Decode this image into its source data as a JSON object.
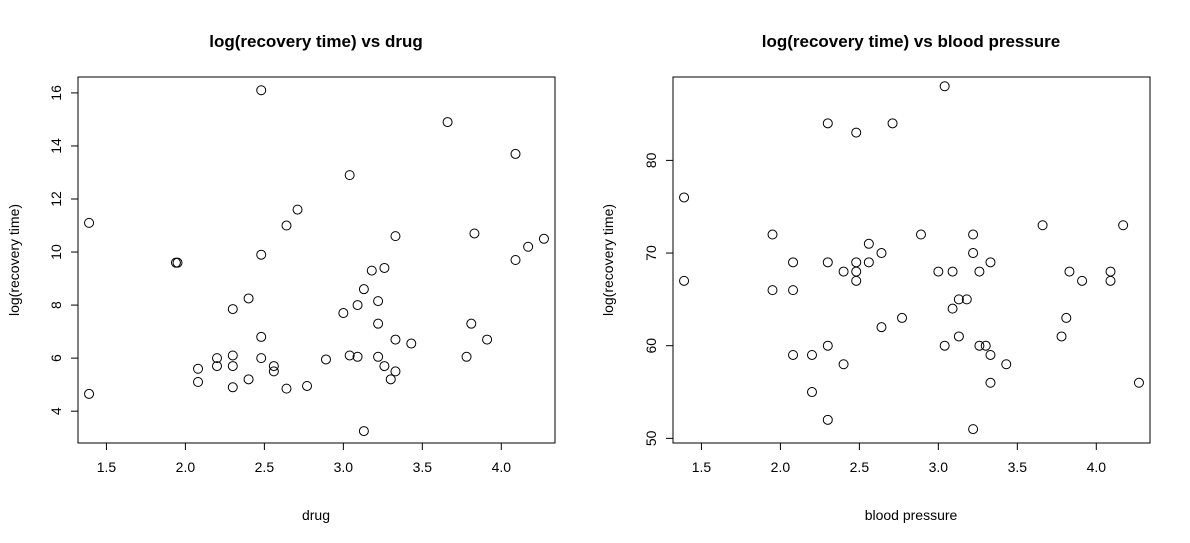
{
  "chart_data": [
    {
      "type": "scatter",
      "title": "log(recovery time) vs drug",
      "xlabel": "drug",
      "ylabel": "log(recovery time)",
      "xlim": [
        1.32,
        4.34
      ],
      "ylim": [
        2.8,
        16.6
      ],
      "xticks": [
        1.5,
        2.0,
        2.5,
        3.0,
        3.5,
        4.0
      ],
      "yticks": [
        4,
        6,
        8,
        10,
        12,
        14,
        16
      ],
      "xtick_labels": [
        "1.5",
        "2.0",
        "2.5",
        "3.0",
        "3.5",
        "4.0"
      ],
      "ytick_labels": [
        "4",
        "6",
        "8",
        "10",
        "12",
        "14",
        "16"
      ],
      "grid": false,
      "points": [
        {
          "x": 1.39,
          "y": 11.1
        },
        {
          "x": 1.39,
          "y": 4.65
        },
        {
          "x": 1.95,
          "y": 9.6
        },
        {
          "x": 1.94,
          "y": 9.6
        },
        {
          "x": 2.08,
          "y": 5.6
        },
        {
          "x": 2.08,
          "y": 5.1
        },
        {
          "x": 2.2,
          "y": 6.0
        },
        {
          "x": 2.2,
          "y": 5.7
        },
        {
          "x": 2.3,
          "y": 7.85
        },
        {
          "x": 2.3,
          "y": 6.1
        },
        {
          "x": 2.3,
          "y": 5.7
        },
        {
          "x": 2.3,
          "y": 4.9
        },
        {
          "x": 2.4,
          "y": 8.25
        },
        {
          "x": 2.4,
          "y": 5.2
        },
        {
          "x": 2.48,
          "y": 16.1
        },
        {
          "x": 2.48,
          "y": 9.9
        },
        {
          "x": 2.48,
          "y": 6.8
        },
        {
          "x": 2.48,
          "y": 6.0
        },
        {
          "x": 2.56,
          "y": 5.7
        },
        {
          "x": 2.56,
          "y": 5.5
        },
        {
          "x": 2.64,
          "y": 11.0
        },
        {
          "x": 2.64,
          "y": 4.85
        },
        {
          "x": 2.71,
          "y": 11.6
        },
        {
          "x": 2.77,
          "y": 4.95
        },
        {
          "x": 2.89,
          "y": 5.95
        },
        {
          "x": 3.0,
          "y": 7.7
        },
        {
          "x": 3.04,
          "y": 12.9
        },
        {
          "x": 3.04,
          "y": 6.1
        },
        {
          "x": 3.09,
          "y": 8.0
        },
        {
          "x": 3.09,
          "y": 6.05
        },
        {
          "x": 3.13,
          "y": 8.6
        },
        {
          "x": 3.13,
          "y": 3.25
        },
        {
          "x": 3.18,
          "y": 9.3
        },
        {
          "x": 3.22,
          "y": 8.15
        },
        {
          "x": 3.22,
          "y": 7.3
        },
        {
          "x": 3.22,
          "y": 6.05
        },
        {
          "x": 3.26,
          "y": 9.4
        },
        {
          "x": 3.26,
          "y": 5.7
        },
        {
          "x": 3.3,
          "y": 5.2
        },
        {
          "x": 3.33,
          "y": 10.6
        },
        {
          "x": 3.33,
          "y": 6.7
        },
        {
          "x": 3.33,
          "y": 5.5
        },
        {
          "x": 3.43,
          "y": 6.55
        },
        {
          "x": 3.66,
          "y": 14.9
        },
        {
          "x": 3.78,
          "y": 6.05
        },
        {
          "x": 3.81,
          "y": 7.3
        },
        {
          "x": 3.83,
          "y": 10.7
        },
        {
          "x": 3.91,
          "y": 6.7
        },
        {
          "x": 4.09,
          "y": 13.7
        },
        {
          "x": 4.09,
          "y": 9.7
        },
        {
          "x": 4.17,
          "y": 10.2
        },
        {
          "x": 4.27,
          "y": 10.5
        }
      ]
    },
    {
      "type": "scatter",
      "title": "log(recovery time) vs blood pressure",
      "xlabel": "blood pressure",
      "ylabel": "log(recovery time)",
      "xlim": [
        1.32,
        4.34
      ],
      "ylim": [
        49.5,
        89.0
      ],
      "xticks": [
        1.5,
        2.0,
        2.5,
        3.0,
        3.5,
        4.0
      ],
      "yticks": [
        50,
        60,
        70,
        80
      ],
      "xtick_labels": [
        "1.5",
        "2.0",
        "2.5",
        "3.0",
        "3.5",
        "4.0"
      ],
      "ytick_labels": [
        "50",
        "60",
        "70",
        "80"
      ],
      "grid": false,
      "points": [
        {
          "x": 1.39,
          "y": 76
        },
        {
          "x": 1.39,
          "y": 67
        },
        {
          "x": 1.95,
          "y": 72
        },
        {
          "x": 1.95,
          "y": 66
        },
        {
          "x": 2.08,
          "y": 69
        },
        {
          "x": 2.08,
          "y": 66
        },
        {
          "x": 2.08,
          "y": 59
        },
        {
          "x": 2.2,
          "y": 59
        },
        {
          "x": 2.2,
          "y": 55
        },
        {
          "x": 2.3,
          "y": 84
        },
        {
          "x": 2.3,
          "y": 69
        },
        {
          "x": 2.3,
          "y": 60
        },
        {
          "x": 2.3,
          "y": 52
        },
        {
          "x": 2.4,
          "y": 68
        },
        {
          "x": 2.4,
          "y": 58
        },
        {
          "x": 2.48,
          "y": 83
        },
        {
          "x": 2.48,
          "y": 69
        },
        {
          "x": 2.48,
          "y": 68
        },
        {
          "x": 2.48,
          "y": 67
        },
        {
          "x": 2.56,
          "y": 71
        },
        {
          "x": 2.56,
          "y": 69
        },
        {
          "x": 2.64,
          "y": 70
        },
        {
          "x": 2.64,
          "y": 62
        },
        {
          "x": 2.71,
          "y": 84
        },
        {
          "x": 2.77,
          "y": 63
        },
        {
          "x": 2.89,
          "y": 72
        },
        {
          "x": 3.0,
          "y": 68
        },
        {
          "x": 3.04,
          "y": 88
        },
        {
          "x": 3.04,
          "y": 60
        },
        {
          "x": 3.09,
          "y": 68
        },
        {
          "x": 3.09,
          "y": 64
        },
        {
          "x": 3.13,
          "y": 65
        },
        {
          "x": 3.13,
          "y": 61
        },
        {
          "x": 3.18,
          "y": 65
        },
        {
          "x": 3.22,
          "y": 72
        },
        {
          "x": 3.22,
          "y": 70
        },
        {
          "x": 3.22,
          "y": 51
        },
        {
          "x": 3.26,
          "y": 68
        },
        {
          "x": 3.26,
          "y": 60
        },
        {
          "x": 3.3,
          "y": 60
        },
        {
          "x": 3.33,
          "y": 69
        },
        {
          "x": 3.33,
          "y": 59
        },
        {
          "x": 3.33,
          "y": 56
        },
        {
          "x": 3.43,
          "y": 58
        },
        {
          "x": 3.66,
          "y": 73
        },
        {
          "x": 3.78,
          "y": 61
        },
        {
          "x": 3.81,
          "y": 63
        },
        {
          "x": 3.83,
          "y": 68
        },
        {
          "x": 3.91,
          "y": 67
        },
        {
          "x": 4.09,
          "y": 68
        },
        {
          "x": 4.09,
          "y": 67
        },
        {
          "x": 4.17,
          "y": 73
        },
        {
          "x": 4.27,
          "y": 56
        }
      ]
    }
  ]
}
